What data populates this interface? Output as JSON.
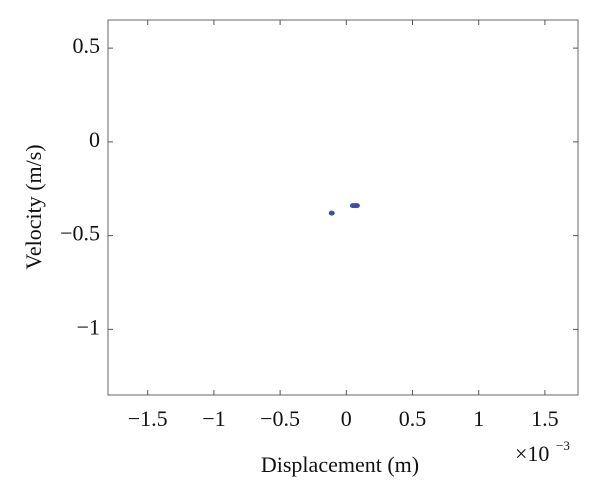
{
  "chart_data": {
    "type": "scatter",
    "x_label": "Displacement (m)",
    "y_label": "Velocity (m/s)",
    "x_multiplier": {
      "base": "×10",
      "power": "−3"
    },
    "series": [
      {
        "color": "#3b4fa6",
        "x": [
          -0.11,
          0.05,
          0.07,
          0.08
        ],
        "y": [
          -0.38,
          -0.34,
          -0.34,
          -0.34
        ]
      }
    ],
    "xlim": [
      -1.8,
      1.75
    ],
    "ylim": [
      -1.35,
      0.65
    ],
    "xticks": [
      {
        "value": -1.5,
        "label": "−1.5"
      },
      {
        "value": -1,
        "label": "−1"
      },
      {
        "value": -0.5,
        "label": "−0.5"
      },
      0,
      0.5,
      1,
      1.5
    ],
    "yticks": [
      {
        "value": -1,
        "label": "−1"
      },
      {
        "value": -0.5,
        "label": "−0.5"
      },
      0,
      0.5
    ],
    "grid": false
  }
}
